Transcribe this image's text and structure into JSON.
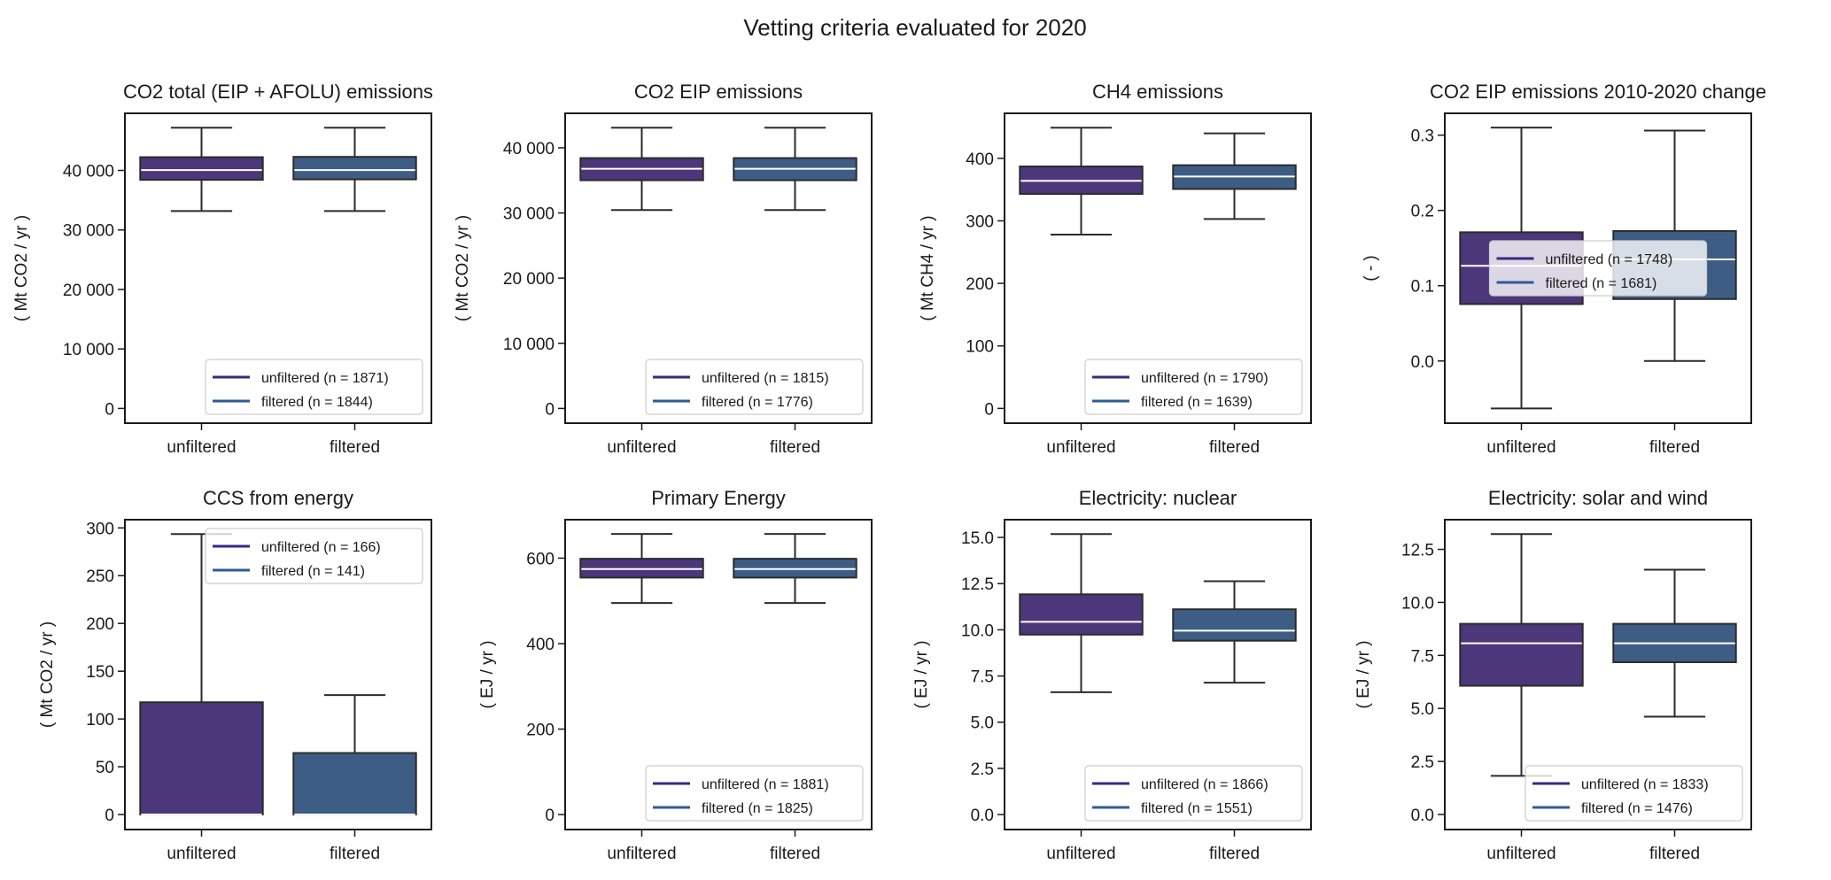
{
  "suptitle": "Vetting criteria evaluated for 2020",
  "colors": {
    "unfiltered_box": "#4b3779",
    "filtered_box": "#3e5d85",
    "unfiltered_legend": "#3b2780",
    "filtered_legend": "#2f5a95",
    "median": "#ffffff",
    "edge": "#2b2b2b"
  },
  "chart_data": [
    {
      "type": "box",
      "title": "CO2 total (EIP + AFOLU) emissions",
      "ylabel": "( Mt CO2 / yr )",
      "ylim": [
        -2475,
        49600
      ],
      "yticks": [
        0,
        10000,
        20000,
        30000,
        40000
      ],
      "ytick_labels": [
        "0",
        "10 000",
        "20 000",
        "30 000",
        "40 000"
      ],
      "categories": [
        "unfiltered",
        "filtered"
      ],
      "legend_position": "lower right",
      "legend": [
        "unfiltered (n = 1871)",
        "filtered (n = 1844)"
      ],
      "boxes": [
        {
          "whislo": 33170,
          "q1": 38420,
          "med": 40050,
          "q3": 42230,
          "whishi": 47180
        },
        {
          "whislo": 33170,
          "q1": 38500,
          "med": 40050,
          "q3": 42280,
          "whishi": 47180
        }
      ]
    },
    {
      "type": "box",
      "title": "CO2 EIP emissions",
      "ylabel": "( Mt CO2 / yr )",
      "ylim": [
        -2260,
        45290
      ],
      "yticks": [
        0,
        10000,
        20000,
        30000,
        40000
      ],
      "ytick_labels": [
        "0",
        "10 000",
        "20 000",
        "30 000",
        "40 000"
      ],
      "categories": [
        "unfiltered",
        "filtered"
      ],
      "legend_position": "lower right",
      "legend": [
        "unfiltered (n = 1815)",
        "filtered (n = 1776)"
      ],
      "boxes": [
        {
          "whislo": 30450,
          "q1": 35020,
          "med": 36790,
          "q3": 38420,
          "whishi": 43080
        },
        {
          "whislo": 30450,
          "q1": 35020,
          "med": 36790,
          "q3": 38420,
          "whishi": 43080
        }
      ]
    },
    {
      "type": "box",
      "title": "CH4 emissions",
      "ylabel": "( Mt CH4 / yr )",
      "ylim": [
        -23.6,
        472
      ],
      "yticks": [
        0,
        100,
        200,
        300,
        400
      ],
      "ytick_labels": [
        "0",
        "100",
        "200",
        "300",
        "400"
      ],
      "categories": [
        "unfiltered",
        "filtered"
      ],
      "legend_position": "lower right",
      "legend": [
        "unfiltered (n = 1790)",
        "filtered (n = 1639)"
      ],
      "boxes": [
        {
          "whislo": 278,
          "q1": 343,
          "med": 364,
          "q3": 387,
          "whishi": 449
        },
        {
          "whislo": 303,
          "q1": 351,
          "med": 371,
          "q3": 389,
          "whishi": 440
        }
      ]
    },
    {
      "type": "box",
      "title": "CO2 EIP emissions 2010-2020 change",
      "ylabel": "( - )",
      "ylim": [
        -0.0826,
        0.329
      ],
      "yticks": [
        0.0,
        0.1,
        0.2,
        0.3
      ],
      "ytick_labels": [
        "0.0",
        "0.1",
        "0.2",
        "0.3"
      ],
      "categories": [
        "unfiltered",
        "filtered"
      ],
      "legend_position": "center",
      "legend": [
        "unfiltered (n = 1748)",
        "filtered (n = 1681)"
      ],
      "boxes": [
        {
          "whislo": -0.063,
          "q1": 0.0756,
          "med": 0.1265,
          "q3": 0.171,
          "whishi": 0.31
        },
        {
          "whislo": 0.0,
          "q1": 0.0823,
          "med": 0.135,
          "q3": 0.1727,
          "whishi": 0.306
        }
      ]
    },
    {
      "type": "box",
      "title": "CCS from energy",
      "ylabel": "( Mt CO2 / yr )",
      "ylim": [
        -15.7,
        308.6
      ],
      "yticks": [
        0,
        50,
        100,
        150,
        200,
        250,
        300
      ],
      "ytick_labels": [
        "0",
        "50",
        "100",
        "150",
        "200",
        "250",
        "300"
      ],
      "categories": [
        "unfiltered",
        "filtered"
      ],
      "legend_position": "upper right",
      "legend": [
        "unfiltered (n = 166)",
        "filtered (n = 141)"
      ],
      "boxes": [
        {
          "whislo": 0,
          "q1": 0,
          "med": 0,
          "q3": 117.5,
          "whishi": 293.5
        },
        {
          "whislo": 0,
          "q1": 0,
          "med": 0,
          "q3": 64.4,
          "whishi": 125
        }
      ]
    },
    {
      "type": "box",
      "title": "Primary Energy",
      "ylabel": "( EJ / yr )",
      "ylim": [
        -35,
        690
      ],
      "yticks": [
        0,
        200,
        400,
        600
      ],
      "ytick_labels": [
        "0",
        "200",
        "400",
        "600"
      ],
      "categories": [
        "unfiltered",
        "filtered"
      ],
      "legend_position": "lower right",
      "legend": [
        "unfiltered (n = 1881)",
        "filtered (n = 1825)"
      ],
      "boxes": [
        {
          "whislo": 495,
          "q1": 554.5,
          "med": 574.5,
          "q3": 598.6,
          "whishi": 656.6
        },
        {
          "whislo": 495,
          "q1": 554.5,
          "med": 574.5,
          "q3": 598.6,
          "whishi": 656.6
        }
      ]
    },
    {
      "type": "box",
      "title": "Electricity: nuclear",
      "ylabel": "( EJ / yr )",
      "ylim": [
        -0.81,
        15.96
      ],
      "yticks": [
        0.0,
        2.5,
        5.0,
        7.5,
        10.0,
        12.5,
        15.0
      ],
      "ytick_labels": [
        "0.0",
        "2.5",
        "5.0",
        "7.5",
        "10.0",
        "12.5",
        "15.0"
      ],
      "categories": [
        "unfiltered",
        "filtered"
      ],
      "legend_position": "lower right",
      "legend": [
        "unfiltered (n = 1866)",
        "filtered (n = 1551)"
      ],
      "boxes": [
        {
          "whislo": 6.62,
          "q1": 9.74,
          "med": 10.43,
          "q3": 11.92,
          "whishi": 15.18
        },
        {
          "whislo": 7.14,
          "q1": 9.41,
          "med": 9.95,
          "q3": 11.11,
          "whishi": 12.63
        }
      ]
    },
    {
      "type": "box",
      "title": "Electricity: solar and wind",
      "ylabel": "( EJ / yr )",
      "ylim": [
        -0.71,
        13.9
      ],
      "yticks": [
        0.0,
        2.5,
        5.0,
        7.5,
        10.0,
        12.5
      ],
      "ytick_labels": [
        "0.0",
        "2.5",
        "5.0",
        "7.5",
        "10.0",
        "12.5"
      ],
      "categories": [
        "unfiltered",
        "filtered"
      ],
      "legend_position": "lower right",
      "legend": [
        "unfiltered (n = 1833)",
        "filtered (n = 1476)"
      ],
      "boxes": [
        {
          "whislo": 1.82,
          "q1": 6.07,
          "med": 8.07,
          "q3": 8.99,
          "whishi": 13.22
        },
        {
          "whislo": 4.61,
          "q1": 7.18,
          "med": 8.07,
          "q3": 8.99,
          "whishi": 11.54
        }
      ]
    }
  ]
}
